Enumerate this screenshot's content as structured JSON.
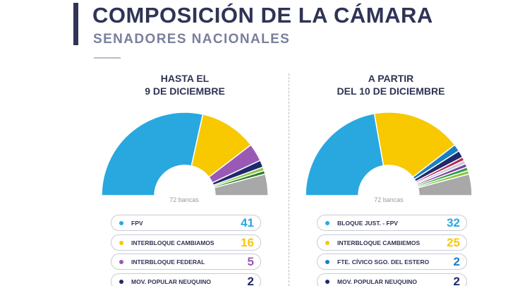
{
  "header": {
    "title": "COMPOSICIÓN DE LA CÁMARA",
    "subtitle": "SENADORES NACIONALES"
  },
  "chart_data": [
    {
      "type": "pie",
      "subtype": "half-donut",
      "heading_line1": "HASTA EL",
      "heading_line2": "9 DE DICIEMBRE",
      "total_label": "72 bancas",
      "total": 72,
      "segments": [
        {
          "name": "FPV",
          "value": 41,
          "color": "#29a8e0",
          "legend": true
        },
        {
          "name": "INTERBLOQUE CAMBIAMOS",
          "value": 16,
          "color": "#f8c800",
          "legend": true
        },
        {
          "name": "INTERBLOQUE FEDERAL",
          "value": 5,
          "color": "#9b59b6",
          "legend": true
        },
        {
          "name": "MOV. POPULAR NEUQUINO",
          "value": 2,
          "color": "#1f2a6b",
          "legend": true
        },
        {
          "name": "",
          "value": 1,
          "color": "#8cc63f",
          "legend": false
        },
        {
          "name": "",
          "value": 1,
          "color": "#2f7d32",
          "legend": false
        },
        {
          "name": "",
          "value": 6,
          "color": "#a8a8a8",
          "legend": false
        }
      ]
    },
    {
      "type": "pie",
      "subtype": "half-donut",
      "heading_line1": "A PARTIR",
      "heading_line2": "DEL 10 DE DICIEMBRE",
      "total_label": "72 bancas",
      "total": 72,
      "segments": [
        {
          "name": "BLOQUE JUST. - FPV",
          "value": 32,
          "color": "#29a8e0",
          "legend": true
        },
        {
          "name": "INTERBLOQUE CAMBIEMOS",
          "value": 25,
          "color": "#f8c800",
          "legend": true
        },
        {
          "name": "FTE. CÍVICO SGO. DEL ESTERO",
          "value": 2,
          "color": "#1a7fc4",
          "legend": true
        },
        {
          "name": "MOV. POPULAR NEUQUINO",
          "value": 2,
          "color": "#1f2a6b",
          "legend": true
        },
        {
          "name": "",
          "value": 1,
          "color": "#b8295a",
          "legend": false
        },
        {
          "name": "",
          "value": 1,
          "color": "#c8c8d8",
          "legend": false
        },
        {
          "name": "",
          "value": 1,
          "color": "#7a3fa0",
          "legend": false
        },
        {
          "name": "",
          "value": 1,
          "color": "#2f9e44",
          "legend": false
        },
        {
          "name": "",
          "value": 1,
          "color": "#8cc63f",
          "legend": false
        },
        {
          "name": "",
          "value": 6,
          "color": "#a8a8a8",
          "legend": false
        }
      ]
    }
  ]
}
